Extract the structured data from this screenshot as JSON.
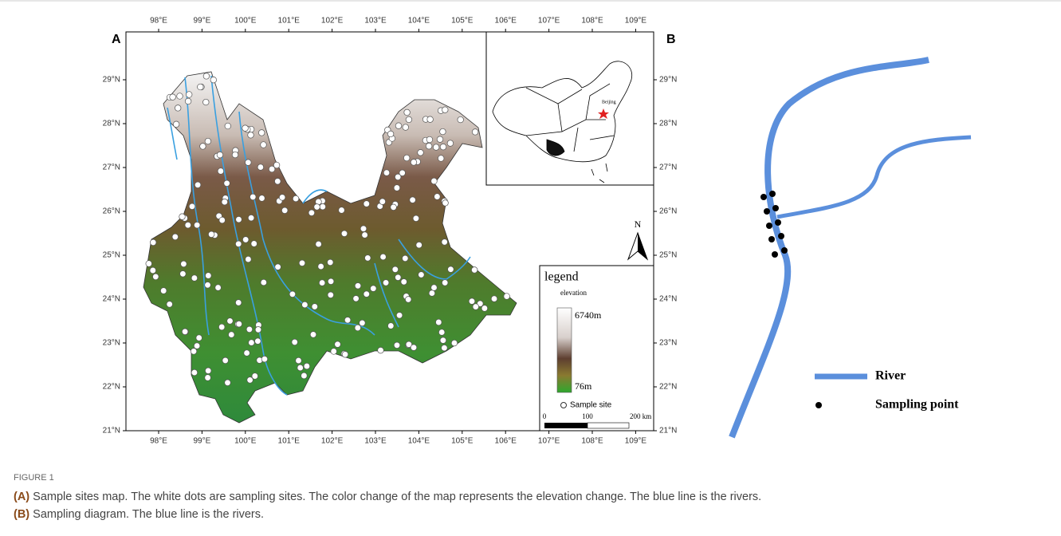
{
  "panel_a": {
    "label": "A",
    "lon_ticks": [
      "98°E",
      "99°E",
      "100°E",
      "101°E",
      "102°E",
      "103°E",
      "104°E",
      "105°E",
      "106°E",
      "107°E",
      "108°E",
      "109°E"
    ],
    "lat_ticks": [
      "29°N",
      "28°N",
      "27°N",
      "26°N",
      "25°N",
      "24°N",
      "23°N",
      "22°N",
      "21°N"
    ],
    "inset_label": "Beijing",
    "north": "N",
    "legend": {
      "title": "legend",
      "subtitle": "elevation",
      "max": "6740m",
      "min": "76m",
      "sample": "Sample site",
      "scale": [
        "0",
        "100",
        "200  km"
      ]
    }
  },
  "panel_b": {
    "label": "B",
    "legend": [
      "River",
      "Sampling point"
    ]
  },
  "caption": {
    "figure": "FIGURE 1",
    "parts": [
      {
        "tag": "(A)",
        "text": "Sample sites map. The white dots are sampling sites. The color change of the map represents the elevation change. The blue line is the rivers."
      },
      {
        "tag": "(B)",
        "text": "Sampling diagram. The blue line is the rivers."
      }
    ]
  }
}
